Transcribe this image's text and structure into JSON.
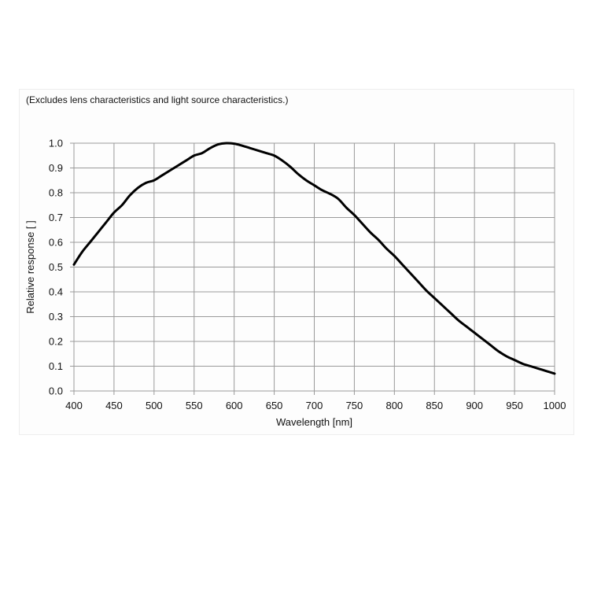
{
  "chart_data": {
    "type": "line",
    "title": "",
    "note": "(Excludes lens characteristics and light source characteristics.)",
    "xlabel": "Wavelength [nm]",
    "ylabel": "Relative response [ ]",
    "xlim": [
      400,
      1000
    ],
    "ylim": [
      0.0,
      1.0
    ],
    "xticks": [
      400,
      450,
      500,
      550,
      600,
      650,
      700,
      750,
      800,
      850,
      900,
      950,
      1000
    ],
    "yticks": [
      "0.0",
      "0.1",
      "0.2",
      "0.3",
      "0.4",
      "0.5",
      "0.6",
      "0.7",
      "0.8",
      "0.9",
      "1.0"
    ],
    "grid": true,
    "legend": "none",
    "series": [
      {
        "color": "#000000",
        "x": [
          400,
          410,
          420,
          430,
          440,
          450,
          460,
          470,
          480,
          490,
          500,
          510,
          520,
          530,
          540,
          550,
          560,
          570,
          580,
          590,
          600,
          610,
          620,
          630,
          640,
          650,
          660,
          670,
          680,
          690,
          700,
          710,
          720,
          730,
          740,
          750,
          760,
          770,
          780,
          790,
          800,
          810,
          820,
          830,
          840,
          850,
          860,
          870,
          880,
          890,
          900,
          910,
          920,
          930,
          940,
          950,
          960,
          970,
          980,
          990,
          1000
        ],
        "y": [
          0.51,
          0.56,
          0.6,
          0.64,
          0.68,
          0.72,
          0.75,
          0.79,
          0.82,
          0.84,
          0.85,
          0.87,
          0.89,
          0.91,
          0.93,
          0.95,
          0.96,
          0.98,
          0.995,
          1.0,
          0.998,
          0.99,
          0.98,
          0.97,
          0.96,
          0.95,
          0.93,
          0.905,
          0.875,
          0.85,
          0.83,
          0.81,
          0.795,
          0.775,
          0.74,
          0.71,
          0.675,
          0.64,
          0.61,
          0.575,
          0.545,
          0.51,
          0.475,
          0.44,
          0.405,
          0.375,
          0.345,
          0.315,
          0.285,
          0.26,
          0.235,
          0.21,
          0.185,
          0.16,
          0.14,
          0.125,
          0.11,
          0.1,
          0.09,
          0.08,
          0.07
        ]
      }
    ]
  }
}
